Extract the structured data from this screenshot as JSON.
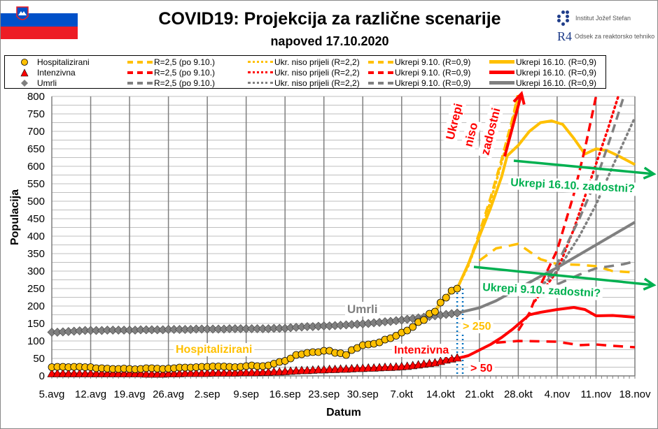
{
  "header": {
    "title": "COVID19: Projekcija za različne scenarije",
    "subtitle": "napoved 17.10.2020",
    "logo_ijs": "Institut Jožef Stefan",
    "logo_r4": "R4",
    "logo_dept": "Odsek za reaktorsko tehniko",
    "flag": "slovenia-flag"
  },
  "colors": {
    "hosp": "#FFC000",
    "int": "#FF0000",
    "umrli": "#808080",
    "green": "#00B050",
    "blue": "#0070C0"
  },
  "legend": {
    "observed": [
      "Hospitalizirani",
      "Intenzivna",
      "Umrli"
    ],
    "r25": "R=2,5 (po 9.10.)",
    "niso": "Ukr. niso prijeli (R=2,2)",
    "u910": "Ukrepi 9.10. (R=0,9)",
    "u1610": "Ukrepi 16.10. (R=0,9)"
  },
  "annotations": {
    "umrli": "Umrli",
    "hosp": "Hospitalizirani",
    "int": "Intenzivna",
    "gt250": "> 250",
    "gt50": "> 50",
    "niso": [
      "Ukrepi",
      "niso",
      "zadostni"
    ],
    "z1610": "Ukrepi 16.10. zadostni?",
    "z910": "Ukrepi 9.10. zadostni?"
  },
  "chart_data": {
    "type": "line",
    "xlabel": "Datum",
    "ylabel": "Populacija",
    "ylim": [
      0,
      800
    ],
    "yticks": [
      0,
      50,
      100,
      150,
      200,
      250,
      300,
      350,
      400,
      450,
      500,
      550,
      600,
      650,
      700,
      750,
      800
    ],
    "xlim": [
      "2020-08-05",
      "2020-11-18"
    ],
    "xticks": [
      [
        "2020-08-05",
        "5.avg"
      ],
      [
        "2020-08-12",
        "12.avg"
      ],
      [
        "2020-08-19",
        "19.avg"
      ],
      [
        "2020-08-26",
        "26.avg"
      ],
      [
        "2020-09-02",
        "2.sep"
      ],
      [
        "2020-09-09",
        "9.sep"
      ],
      [
        "2020-09-16",
        "16.sep"
      ],
      [
        "2020-09-23",
        "23.sep"
      ],
      [
        "2020-09-30",
        "30.sep"
      ],
      [
        "2020-10-07",
        "7.okt"
      ],
      [
        "2020-10-14",
        "14.okt"
      ],
      [
        "2020-10-21",
        "21.okt"
      ],
      [
        "2020-10-28",
        "28.okt"
      ],
      [
        "2020-11-04",
        "4.nov"
      ],
      [
        "2020-11-11",
        "11.nov"
      ],
      [
        "2020-11-18",
        "18.nov"
      ]
    ],
    "grid": true,
    "legend_position": "top",
    "observed_dates": [
      "2020-08-05",
      "2020-08-06",
      "2020-08-07",
      "2020-08-08",
      "2020-08-09",
      "2020-08-10",
      "2020-08-11",
      "2020-08-12",
      "2020-08-13",
      "2020-08-14",
      "2020-08-15",
      "2020-08-16",
      "2020-08-17",
      "2020-08-18",
      "2020-08-19",
      "2020-08-20",
      "2020-08-21",
      "2020-08-22",
      "2020-08-23",
      "2020-08-24",
      "2020-08-25",
      "2020-08-26",
      "2020-08-27",
      "2020-08-28",
      "2020-08-29",
      "2020-08-30",
      "2020-08-31",
      "2020-09-01",
      "2020-09-02",
      "2020-09-03",
      "2020-09-04",
      "2020-09-05",
      "2020-09-06",
      "2020-09-07",
      "2020-09-08",
      "2020-09-09",
      "2020-09-10",
      "2020-09-11",
      "2020-09-12",
      "2020-09-13",
      "2020-09-14",
      "2020-09-15",
      "2020-09-16",
      "2020-09-17",
      "2020-09-18",
      "2020-09-19",
      "2020-09-20",
      "2020-09-21",
      "2020-09-22",
      "2020-09-23",
      "2020-09-24",
      "2020-09-25",
      "2020-09-26",
      "2020-09-27",
      "2020-09-28",
      "2020-09-29",
      "2020-09-30",
      "2020-10-01",
      "2020-10-02",
      "2020-10-03",
      "2020-10-04",
      "2020-10-05",
      "2020-10-06",
      "2020-10-07",
      "2020-10-08",
      "2020-10-09",
      "2020-10-10",
      "2020-10-11",
      "2020-10-12",
      "2020-10-13",
      "2020-10-14",
      "2020-10-15",
      "2020-10-16",
      "2020-10-17"
    ],
    "observed": [
      {
        "name": "Hospitalizirani",
        "color": "#FFC000",
        "marker": "circle",
        "values": [
          25,
          26,
          26,
          25,
          26,
          26,
          25,
          25,
          22,
          22,
          21,
          20,
          20,
          21,
          20,
          19,
          20,
          22,
          22,
          21,
          20,
          21,
          22,
          24,
          24,
          24,
          25,
          26,
          26,
          27,
          27,
          27,
          26,
          25,
          26,
          28,
          30,
          28,
          28,
          30,
          35,
          40,
          43,
          50,
          60,
          62,
          66,
          68,
          68,
          72,
          72,
          66,
          65,
          60,
          74,
          80,
          88,
          90,
          92,
          96,
          104,
          108,
          115,
          124,
          130,
          140,
          154,
          160,
          178,
          184,
          210,
          224,
          244,
          250
        ]
      },
      {
        "name": "Intenzivna",
        "color": "#FF0000",
        "marker": "triangle",
        "values": [
          5,
          5,
          5,
          5,
          5,
          5,
          5,
          5,
          5,
          5,
          5,
          5,
          5,
          5,
          5,
          5,
          5,
          4,
          4,
          4,
          4,
          5,
          5,
          5,
          6,
          6,
          6,
          6,
          6,
          7,
          7,
          7,
          7,
          7,
          8,
          8,
          8,
          8,
          9,
          9,
          10,
          10,
          11,
          12,
          13,
          14,
          14,
          15,
          16,
          16,
          17,
          17,
          18,
          18,
          19,
          20,
          20,
          21,
          21,
          22,
          23,
          23,
          24,
          25,
          26,
          28,
          30,
          32,
          34,
          36,
          40,
          44,
          47,
          50
        ]
      },
      {
        "name": "Umrli",
        "color": "#808080",
        "marker": "diamond",
        "values": [
          125,
          125,
          126,
          127,
          128,
          129,
          130,
          130,
          130,
          130,
          131,
          131,
          131,
          131,
          131,
          131,
          132,
          132,
          132,
          132,
          132,
          133,
          133,
          133,
          133,
          133,
          134,
          134,
          134,
          134,
          134,
          134,
          135,
          135,
          135,
          135,
          135,
          135,
          135,
          135,
          136,
          136,
          136,
          138,
          139,
          140,
          141,
          141,
          142,
          143,
          143,
          144,
          145,
          146,
          147,
          148,
          149,
          150,
          152,
          153,
          155,
          156,
          158,
          160,
          162,
          164,
          166,
          168,
          170,
          172,
          174,
          176,
          178,
          180
        ]
      }
    ],
    "projections": [
      {
        "name": "Hospitalizirani R=2,5 (po 9.10.)",
        "color": "#FFC000",
        "style": "dash",
        "points": [
          [
            "2020-10-17",
            250
          ],
          [
            "2020-10-19",
            320
          ],
          [
            "2020-10-21",
            410
          ],
          [
            "2020-10-23",
            510
          ],
          [
            "2020-10-25",
            620
          ],
          [
            "2020-10-27",
            740
          ],
          [
            "2020-10-28",
            810
          ]
        ]
      },
      {
        "name": "Hospitalizirani Ukr. niso prijeli (R=2,2)",
        "color": "#FFC000",
        "style": "dot",
        "points": [
          [
            "2020-10-17",
            250
          ],
          [
            "2020-10-19",
            315
          ],
          [
            "2020-10-21",
            400
          ],
          [
            "2020-10-23",
            500
          ],
          [
            "2020-10-25",
            610
          ],
          [
            "2020-10-27",
            730
          ],
          [
            "2020-10-28",
            805
          ]
        ]
      },
      {
        "name": "Hospitalizirani Ukrepi 9.10. (R=0,9)",
        "color": "#FFC000",
        "style": "longdash",
        "points": [
          [
            "2020-10-21",
            330
          ],
          [
            "2020-10-24",
            365
          ],
          [
            "2020-10-28",
            378
          ],
          [
            "2020-11-01",
            334
          ],
          [
            "2020-11-04",
            320
          ],
          [
            "2020-11-08",
            318
          ],
          [
            "2020-11-11",
            314
          ],
          [
            "2020-11-14",
            300
          ],
          [
            "2020-11-18",
            296
          ]
        ]
      },
      {
        "name": "Hospitalizirani Ukrepi 16.10. (R=0,9)",
        "color": "#FFC000",
        "style": "solid",
        "points": [
          [
            "2020-10-17",
            250
          ],
          [
            "2020-10-19",
            320
          ],
          [
            "2020-10-21",
            400
          ],
          [
            "2020-10-23",
            480
          ],
          [
            "2020-10-25",
            570
          ],
          [
            "2020-10-26",
            630
          ],
          [
            "2020-10-28",
            660
          ],
          [
            "2020-10-30",
            700
          ],
          [
            "2020-11-01",
            725
          ],
          [
            "2020-11-03",
            730
          ],
          [
            "2020-11-05",
            720
          ],
          [
            "2020-11-07",
            680
          ],
          [
            "2020-11-09",
            635
          ],
          [
            "2020-11-11",
            650
          ],
          [
            "2020-11-13",
            645
          ],
          [
            "2020-11-15",
            630
          ],
          [
            "2020-11-18",
            605
          ]
        ]
      },
      {
        "name": "Intenzivna R=2,5 (po 9.10.)",
        "color": "#FF0000",
        "style": "dash",
        "points": [
          [
            "2020-10-28",
            130
          ],
          [
            "2020-10-30",
            180
          ],
          [
            "2020-11-01",
            260
          ],
          [
            "2020-11-04",
            360
          ],
          [
            "2020-11-07",
            520
          ],
          [
            "2020-11-09",
            650
          ],
          [
            "2020-11-11",
            800
          ]
        ]
      },
      {
        "name": "Intenzivna Ukr. niso prijeli (R=2,2)",
        "color": "#FF0000",
        "style": "dot",
        "points": [
          [
            "2020-10-31",
            214
          ],
          [
            "2020-11-04",
            300
          ],
          [
            "2020-11-07",
            420
          ],
          [
            "2020-11-10",
            560
          ],
          [
            "2020-11-13",
            700
          ],
          [
            "2020-11-15",
            800
          ]
        ]
      },
      {
        "name": "Intenzivna Ukrepi 9.10. (R=0,9)",
        "color": "#FF0000",
        "style": "longdash",
        "points": [
          [
            "2020-10-24",
            95
          ],
          [
            "2020-10-28",
            100
          ],
          [
            "2020-11-04",
            98
          ],
          [
            "2020-11-08",
            88
          ],
          [
            "2020-11-11",
            90
          ],
          [
            "2020-11-14",
            86
          ],
          [
            "2020-11-18",
            82
          ]
        ]
      },
      {
        "name": "Intenzivna Ukrepi 16.10. (R=0,9)",
        "color": "#FF0000",
        "style": "solid",
        "points": [
          [
            "2020-10-17",
            50
          ],
          [
            "2020-10-19",
            58
          ],
          [
            "2020-10-21",
            74
          ],
          [
            "2020-10-23",
            90
          ],
          [
            "2020-10-25",
            110
          ],
          [
            "2020-10-27",
            134
          ],
          [
            "2020-10-30",
            175
          ],
          [
            "2020-11-01",
            182
          ],
          [
            "2020-11-04",
            190
          ],
          [
            "2020-11-07",
            196
          ],
          [
            "2020-11-09",
            190
          ],
          [
            "2020-11-11",
            172
          ],
          [
            "2020-11-14",
            173
          ],
          [
            "2020-11-18",
            168
          ]
        ]
      },
      {
        "name": "Umrli R=2,5 (po 9.10.)",
        "color": "#808080",
        "style": "dash",
        "points": [
          [
            "2020-11-01",
            250
          ],
          [
            "2020-11-04",
            320
          ],
          [
            "2020-11-08",
            450
          ],
          [
            "2020-11-11",
            560
          ],
          [
            "2020-11-14",
            700
          ],
          [
            "2020-11-16",
            800
          ]
        ]
      },
      {
        "name": "Umrli Ukr. niso prijeli (R=2,2)",
        "color": "#808080",
        "style": "dot",
        "points": [
          [
            "2020-11-01",
            255
          ],
          [
            "2020-11-04",
            300
          ],
          [
            "2020-11-08",
            400
          ],
          [
            "2020-11-11",
            490
          ],
          [
            "2020-11-14",
            600
          ],
          [
            "2020-11-18",
            740
          ]
        ]
      },
      {
        "name": "Umrli Ukrepi 9.10. (R=0,9)",
        "color": "#808080",
        "style": "longdash",
        "points": [
          [
            "2020-11-04",
            262
          ],
          [
            "2020-11-08",
            290
          ],
          [
            "2020-11-11",
            308
          ],
          [
            "2020-11-16",
            320
          ],
          [
            "2020-11-18",
            328
          ]
        ]
      },
      {
        "name": "Umrli Ukrepi 16.10. (R=0,9)",
        "color": "#808080",
        "style": "solid",
        "points": [
          [
            "2020-10-17",
            180
          ],
          [
            "2020-10-21",
            195
          ],
          [
            "2020-10-24",
            215
          ],
          [
            "2020-10-28",
            250
          ],
          [
            "2020-11-01",
            285
          ],
          [
            "2020-11-04",
            310
          ],
          [
            "2020-11-11",
            375
          ],
          [
            "2020-11-18",
            440
          ]
        ]
      }
    ]
  }
}
